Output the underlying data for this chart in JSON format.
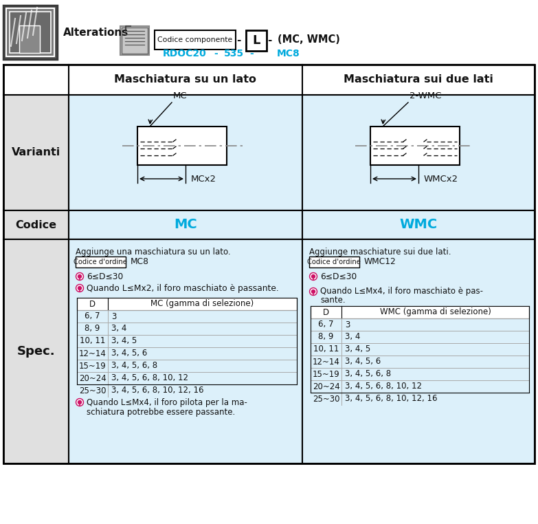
{
  "blue_color": "#00AADD",
  "cell_bg": "#DCF0FA",
  "gray_bg": "#E0E0E0",
  "dark_color": "#111111",
  "col1_label": "Maschiatura su un lato",
  "col2_label": "Maschiatura sui due lati",
  "row1_label": "Varianti",
  "row2_label": "Codice",
  "row3_label": "Spec.",
  "codice_mc": "MC",
  "codice_wmc": "WMC",
  "spec_left_title": "Aggiunge una maschiatura su un lato.",
  "spec_left_ordine_label": "Codice d'ordine",
  "spec_left_ordine_value": "MC8",
  "spec_left_note1": "6≤D≤30",
  "spec_left_note2": "Quando L≤Mx2, il foro maschiato è passante.",
  "spec_left_d_header": "D",
  "spec_left_mc_header": "MC (gamma di selezione)",
  "spec_left_rows": [
    [
      "6, 7",
      "3"
    ],
    [
      "8, 9",
      "3, 4"
    ],
    [
      "10, 11",
      "3, 4, 5"
    ],
    [
      "12~14",
      "3, 4, 5, 6"
    ],
    [
      "15~19",
      "3, 4, 5, 6, 8"
    ],
    [
      "20~24",
      "3, 4, 5, 6, 8, 10, 12"
    ],
    [
      "25~30",
      "3, 4, 5, 6, 8, 10, 12, 16"
    ]
  ],
  "spec_left_note3a": "Quando L≤Mx4, il foro pilota per la ma-",
  "spec_left_note3b": "schiatura potrebbe essere passante.",
  "spec_right_title": "Aggiunge maschiature sui due lati.",
  "spec_right_ordine_label": "Codice d'ordine",
  "spec_right_ordine_value": "WMC12",
  "spec_right_note1": "6≤D≤30",
  "spec_right_note2a": "Quando L≤Mx4, il foro maschiato è pas-",
  "spec_right_note2b": "sante.",
  "spec_right_d_header": "D",
  "spec_right_wmc_header": "WMC (gamma di selezione)",
  "spec_right_rows": [
    [
      "6, 7",
      "3"
    ],
    [
      "8, 9",
      "3, 4"
    ],
    [
      "10, 11",
      "3, 4, 5"
    ],
    [
      "12~14",
      "3, 4, 5, 6"
    ],
    [
      "15~19",
      "3, 4, 5, 6, 8"
    ],
    [
      "20~24",
      "3, 4, 5, 6, 8, 10, 12"
    ],
    [
      "25~30",
      "3, 4, 5, 6, 8, 10, 12, 16"
    ]
  ]
}
